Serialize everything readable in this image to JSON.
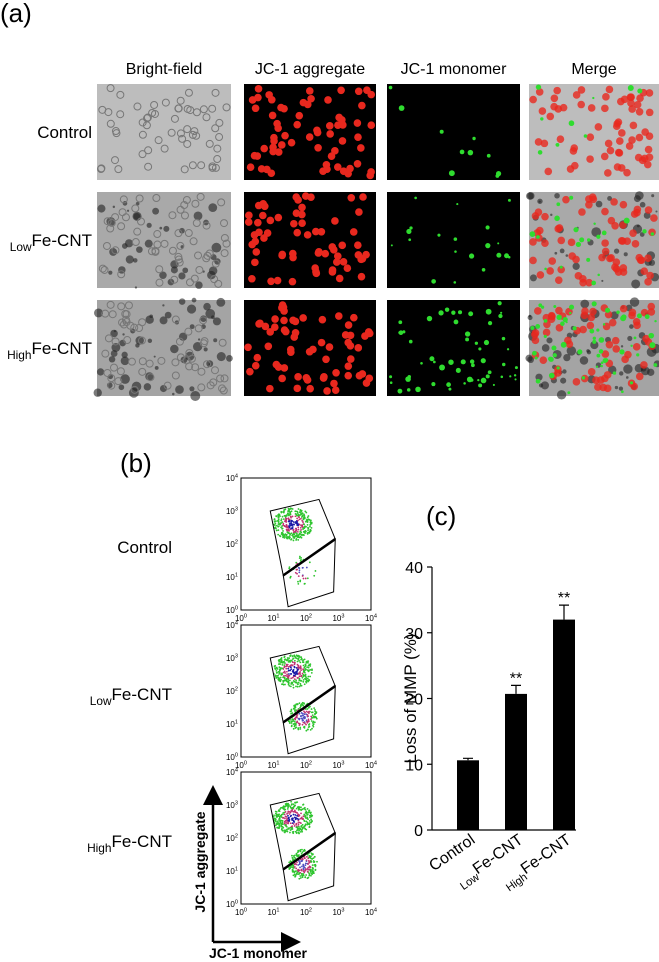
{
  "panel_a": {
    "label": "(a)",
    "columns": [
      "Bright-field",
      "JC-1 aggregate",
      "JC-1 monomer",
      "Merge"
    ],
    "rows": [
      {
        "text": "Control"
      },
      {
        "sub": "Low",
        "text": "Fe-CNT"
      },
      {
        "sub": "High",
        "text": "Fe-CNT"
      }
    ]
  },
  "panel_b": {
    "label": "(b)",
    "rows": [
      {
        "text": "Control"
      },
      {
        "sub": "Low",
        "text": "Fe-CNT"
      },
      {
        "sub": "High",
        "text": "Fe-CNT"
      }
    ],
    "ticks": [
      {
        "base": "10",
        "exp": "0"
      },
      {
        "base": "10",
        "exp": "1"
      },
      {
        "base": "10",
        "exp": "2"
      },
      {
        "base": "10",
        "exp": "3"
      },
      {
        "base": "10",
        "exp": "4"
      }
    ],
    "y_label": "JC-1 aggregate",
    "x_label": "JC-1 monomer"
  },
  "chart_data": {
    "type": "bar",
    "title": "(c)",
    "categories": [
      {
        "text": "Control"
      },
      {
        "sub": "Low",
        "text": "Fe-CNT"
      },
      {
        "sub": "High",
        "text": "Fe-CNT"
      }
    ],
    "values": [
      10.6,
      20.7,
      32
    ],
    "errors": [
      0.3,
      1.3,
      2.2
    ],
    "significance": [
      null,
      "**",
      "**"
    ],
    "ylabel": "Loss of MMP (%)",
    "ylim": [
      0,
      40
    ],
    "yticks": [
      0,
      10,
      20,
      30,
      40
    ],
    "color": "#000000"
  }
}
